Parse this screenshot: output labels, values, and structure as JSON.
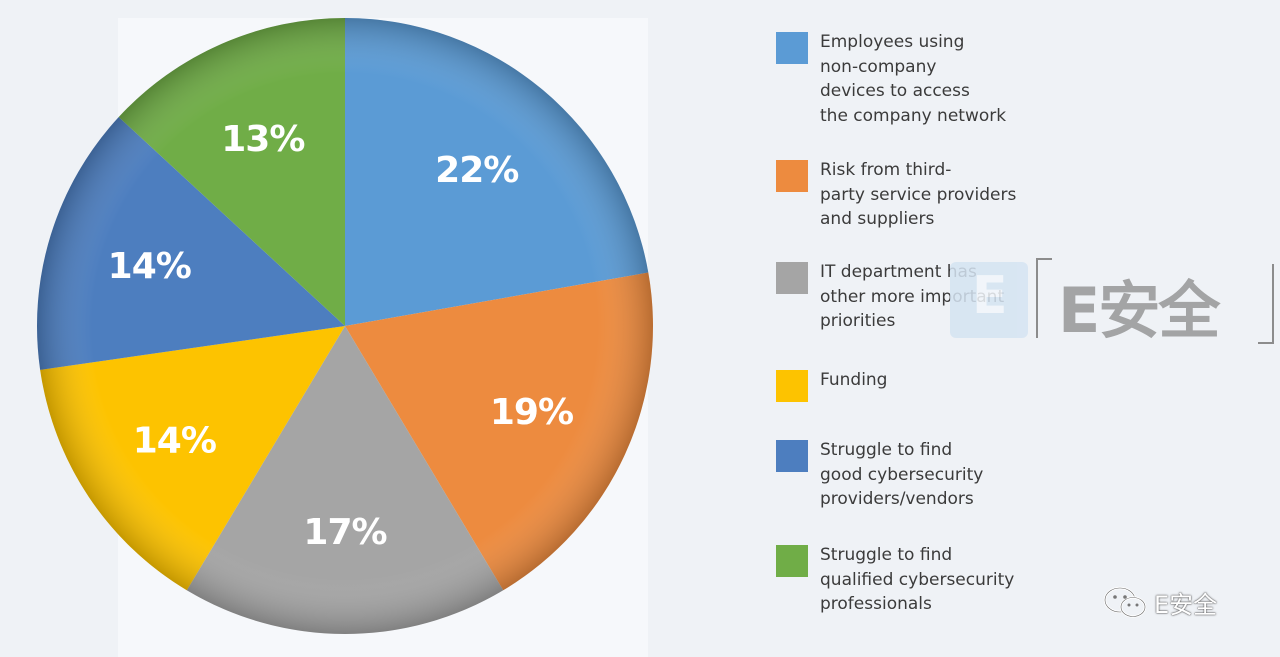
{
  "chart_data": {
    "type": "pie",
    "categories": [
      "Employees using\nnon-company\ndevices to access\nthe company network",
      "Risk from third-\nparty service providers\nand suppliers",
      "IT department has\nother more important\npriorities",
      "Funding",
      "Struggle to find\ngood  cybersecurity\nproviders/vendors",
      "Struggle to find\nqualified cybersecurity\nprofessionals"
    ],
    "values": [
      22,
      19,
      17,
      14,
      14,
      13
    ],
    "value_labels": [
      "22%",
      "19%",
      "17%",
      "14%",
      "14%",
      "13%"
    ],
    "colors": [
      "#5b9bd5",
      "#ed8b3f",
      "#a5a5a5",
      "#fdc300",
      "#4d7ebf",
      "#70ad47"
    ],
    "start_angle_deg": 0,
    "direction": "clockwise",
    "legend_position": "right"
  },
  "watermark": {
    "icon_letter": "E",
    "text": "E安全"
  },
  "account_tag": {
    "icon": "wechat-icon",
    "name": "E安全"
  }
}
